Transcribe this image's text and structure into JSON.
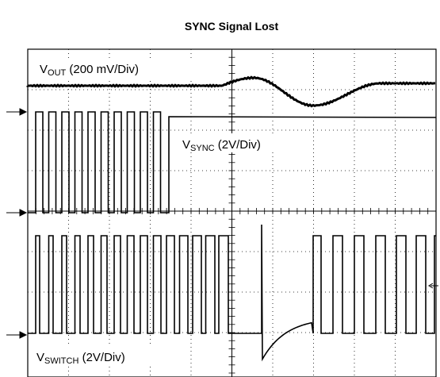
{
  "header": {
    "title": "SYNC Signal Lost"
  },
  "traces": [
    {
      "symbol": "V",
      "subscript": "OUT",
      "scale": " (200 mV/Div)"
    },
    {
      "symbol": "V",
      "subscript": "SYNC",
      "scale": " (2V/Div)"
    },
    {
      "symbol": "V",
      "subscript": "SWITCH",
      "scale": " (2V/Div)"
    }
  ]
}
